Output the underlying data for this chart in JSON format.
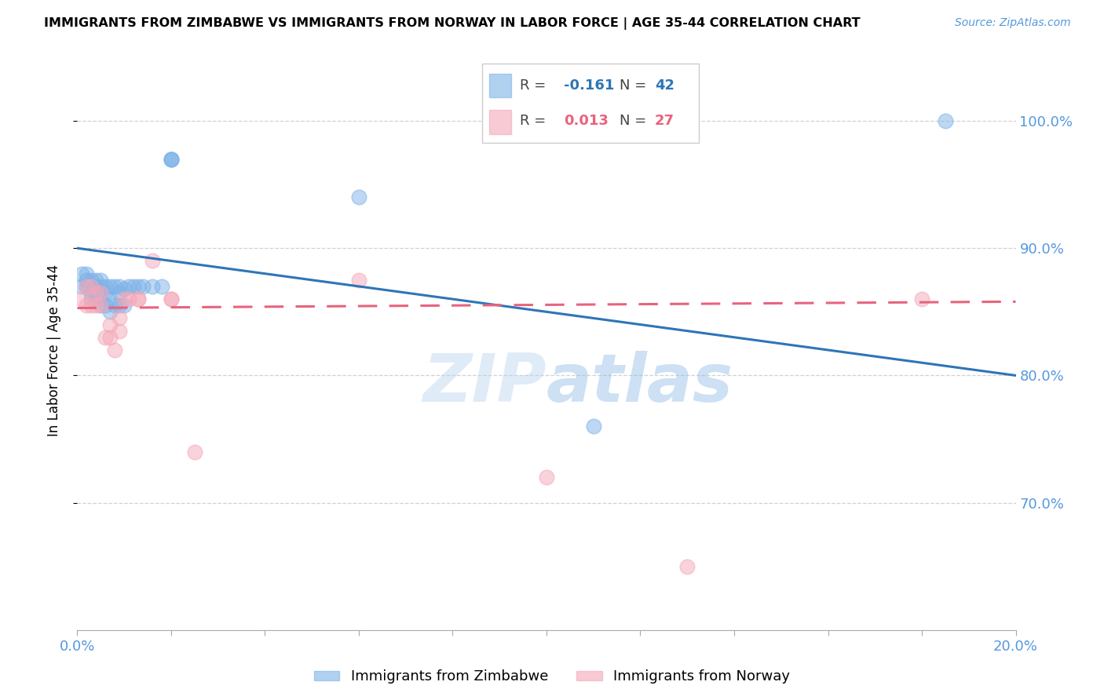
{
  "title": "IMMIGRANTS FROM ZIMBABWE VS IMMIGRANTS FROM NORWAY IN LABOR FORCE | AGE 35-44 CORRELATION CHART",
  "source": "Source: ZipAtlas.com",
  "ylabel": "In Labor Force | Age 35-44",
  "xlim": [
    0.0,
    0.2
  ],
  "ylim": [
    0.6,
    1.04
  ],
  "yticks": [
    0.7,
    0.8,
    0.9,
    1.0
  ],
  "xticks": [
    0.0,
    0.02,
    0.04,
    0.06,
    0.08,
    0.1,
    0.12,
    0.14,
    0.16,
    0.18,
    0.2
  ],
  "xtick_labels": [
    "0.0%",
    "",
    "",
    "",
    "",
    "",
    "",
    "",
    "",
    "",
    "20.0%"
  ],
  "blue_label": "Immigrants from Zimbabwe",
  "pink_label": "Immigrants from Norway",
  "R_blue": -0.161,
  "N_blue": 42,
  "R_pink": 0.013,
  "N_pink": 27,
  "blue_color": "#7EB3E8",
  "pink_color": "#F4A8B8",
  "blue_line_color": "#2E75B6",
  "pink_line_color": "#E8637E",
  "watermark": "ZIPatlas",
  "blue_x": [
    0.001,
    0.001,
    0.002,
    0.002,
    0.002,
    0.003,
    0.003,
    0.003,
    0.003,
    0.004,
    0.004,
    0.004,
    0.004,
    0.005,
    0.005,
    0.005,
    0.005,
    0.006,
    0.006,
    0.006,
    0.007,
    0.007,
    0.007,
    0.008,
    0.008,
    0.009,
    0.009,
    0.009,
    0.01,
    0.01,
    0.011,
    0.012,
    0.013,
    0.014,
    0.016,
    0.018,
    0.02,
    0.02,
    0.02,
    0.06,
    0.11,
    0.185
  ],
  "blue_y": [
    0.87,
    0.88,
    0.87,
    0.875,
    0.88,
    0.86,
    0.865,
    0.87,
    0.875,
    0.86,
    0.865,
    0.87,
    0.875,
    0.855,
    0.86,
    0.87,
    0.875,
    0.855,
    0.865,
    0.87,
    0.85,
    0.86,
    0.87,
    0.855,
    0.87,
    0.855,
    0.865,
    0.87,
    0.855,
    0.868,
    0.87,
    0.87,
    0.87,
    0.87,
    0.87,
    0.87,
    0.97,
    0.97,
    0.97,
    0.94,
    0.76,
    1.0
  ],
  "pink_x": [
    0.001,
    0.002,
    0.002,
    0.003,
    0.003,
    0.004,
    0.004,
    0.005,
    0.005,
    0.006,
    0.007,
    0.007,
    0.008,
    0.009,
    0.009,
    0.01,
    0.011,
    0.013,
    0.013,
    0.016,
    0.02,
    0.02,
    0.025,
    0.06,
    0.1,
    0.13,
    0.18
  ],
  "pink_y": [
    0.86,
    0.855,
    0.87,
    0.855,
    0.87,
    0.855,
    0.865,
    0.855,
    0.865,
    0.83,
    0.83,
    0.84,
    0.82,
    0.835,
    0.845,
    0.86,
    0.86,
    0.86,
    0.86,
    0.89,
    0.86,
    0.86,
    0.74,
    0.875,
    0.72,
    0.65,
    0.86
  ],
  "blue_trendline_x": [
    0.0,
    0.2
  ],
  "blue_trendline_y": [
    0.9,
    0.8
  ],
  "pink_trendline_x": [
    0.0,
    0.2
  ],
  "pink_trendline_y": [
    0.853,
    0.858
  ]
}
